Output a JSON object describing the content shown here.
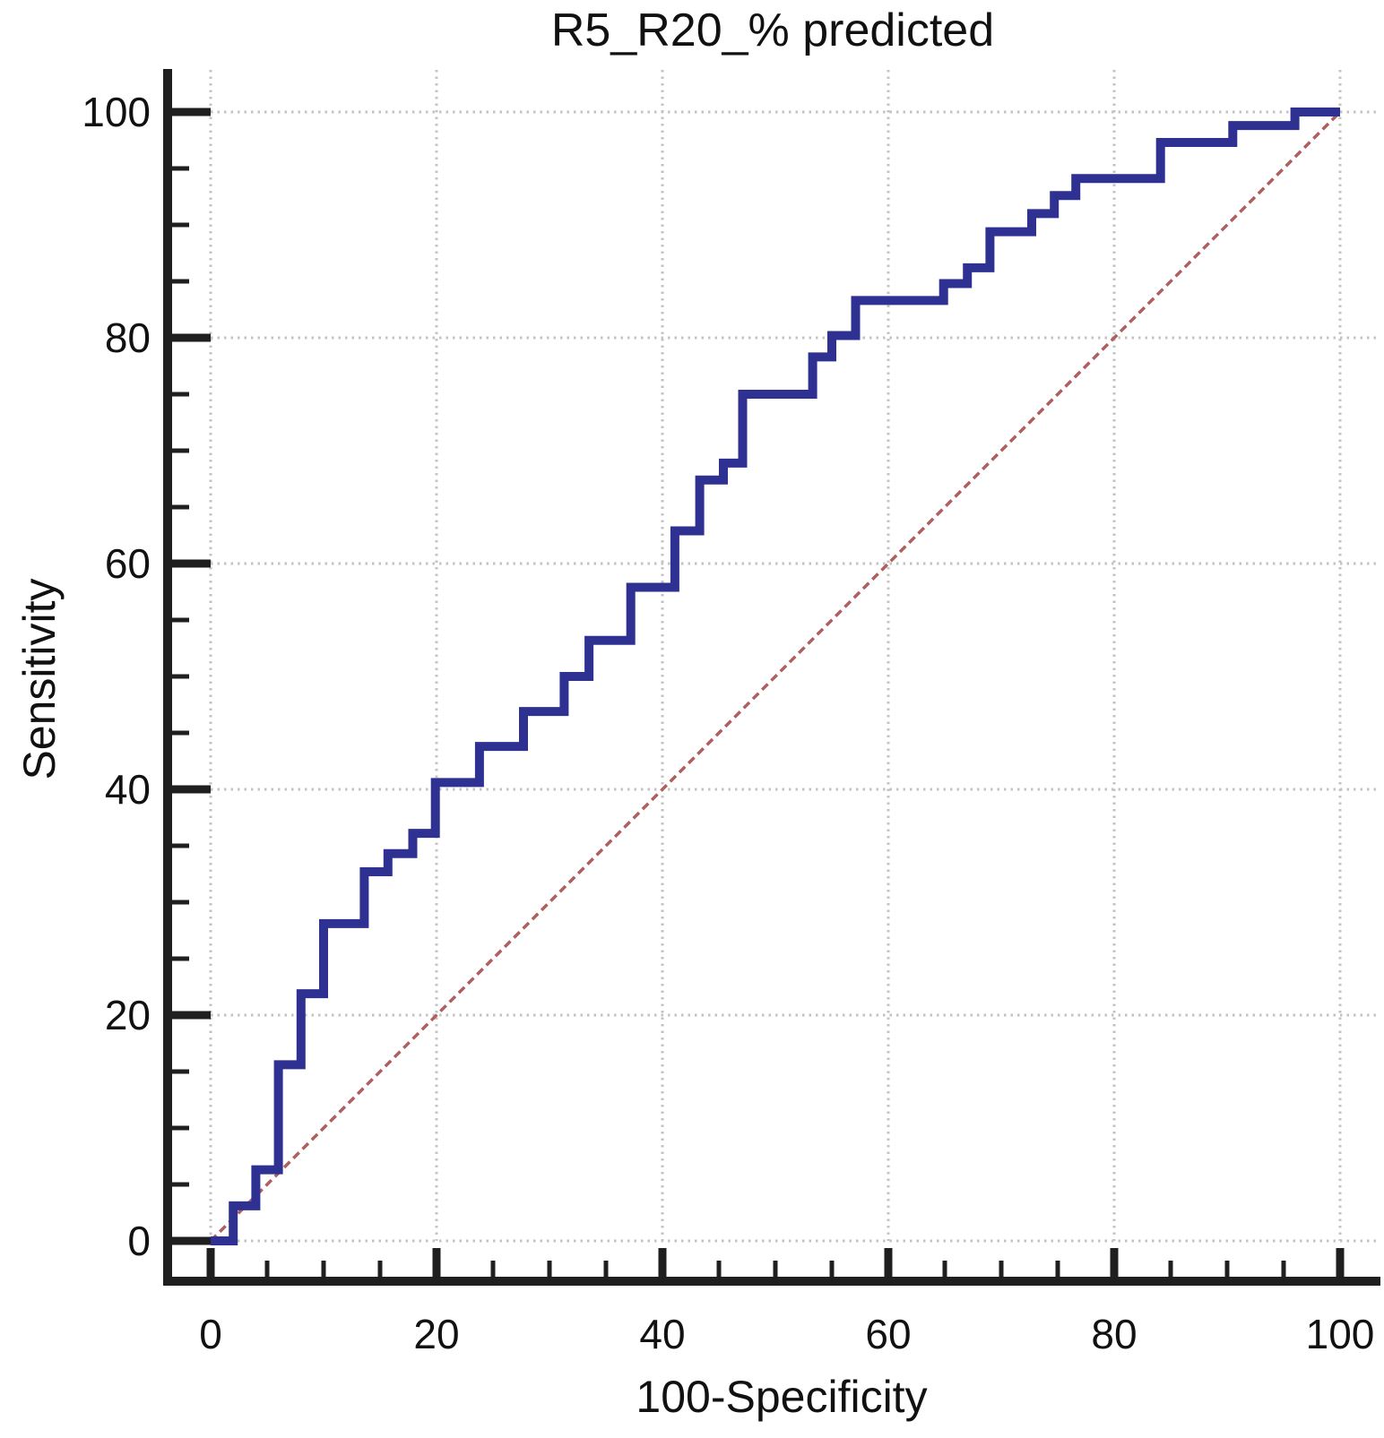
{
  "figure": {
    "title": "R5_R20_% predicted",
    "x_axis_label": "100-Specificity",
    "y_axis_label": "Sensitivity"
  },
  "chart_data": {
    "type": "line",
    "subtype": "roc-step-curve",
    "title": "R5_R20_% predicted",
    "xlabel": "100-Specificity",
    "ylabel": "Sensitivity",
    "xlim": [
      0,
      100
    ],
    "ylim": [
      0,
      100
    ],
    "x_major_ticks": [
      0,
      20,
      40,
      60,
      80,
      100
    ],
    "y_major_ticks": [
      0,
      20,
      40,
      60,
      80,
      100
    ],
    "minor_tick_step": 5,
    "grid": "dotted gray gridlines at major ticks",
    "legend": "none",
    "series": [
      {
        "name": "ROC curve",
        "style": "step-solid",
        "color": "#2e3192",
        "line_width": 10,
        "points": [
          [
            0,
            0
          ],
          [
            2,
            0
          ],
          [
            2,
            3.1
          ],
          [
            4,
            3.1
          ],
          [
            4,
            6.3
          ],
          [
            6,
            6.3
          ],
          [
            6,
            15.6
          ],
          [
            8,
            15.6
          ],
          [
            8,
            21.9
          ],
          [
            10,
            21.9
          ],
          [
            10,
            28.1
          ],
          [
            13.6,
            28.1
          ],
          [
            13.6,
            32.7
          ],
          [
            15.7,
            32.7
          ],
          [
            15.7,
            34.3
          ],
          [
            17.9,
            34.3
          ],
          [
            17.9,
            36.1
          ],
          [
            19.9,
            36.1
          ],
          [
            19.9,
            40.6
          ],
          [
            23.8,
            40.6
          ],
          [
            23.8,
            43.8
          ],
          [
            27.7,
            43.8
          ],
          [
            27.7,
            46.9
          ],
          [
            31.3,
            46.9
          ],
          [
            31.3,
            50
          ],
          [
            33.5,
            50
          ],
          [
            33.5,
            53.2
          ],
          [
            37.2,
            53.2
          ],
          [
            37.2,
            57.9
          ],
          [
            41.1,
            57.9
          ],
          [
            41.1,
            62.9
          ],
          [
            43.3,
            62.9
          ],
          [
            43.3,
            67.4
          ],
          [
            45.4,
            67.4
          ],
          [
            45.4,
            68.9
          ],
          [
            47.1,
            68.9
          ],
          [
            47.1,
            75
          ],
          [
            53.3,
            75
          ],
          [
            53.3,
            78.3
          ],
          [
            55,
            78.3
          ],
          [
            55,
            80.2
          ],
          [
            57.1,
            80.2
          ],
          [
            57.1,
            83.3
          ],
          [
            64.9,
            83.3
          ],
          [
            64.9,
            84.8
          ],
          [
            67,
            84.8
          ],
          [
            67,
            86.2
          ],
          [
            69,
            86.2
          ],
          [
            69,
            89.4
          ],
          [
            72.7,
            89.4
          ],
          [
            72.7,
            91
          ],
          [
            74.7,
            91
          ],
          [
            74.7,
            92.6
          ],
          [
            76.6,
            92.6
          ],
          [
            76.6,
            94.1
          ],
          [
            84.1,
            94.1
          ],
          [
            84.1,
            97.3
          ],
          [
            90.5,
            97.3
          ],
          [
            90.5,
            98.8
          ],
          [
            96,
            98.8
          ],
          [
            96,
            100
          ],
          [
            100,
            100
          ]
        ]
      },
      {
        "name": "reference diagonal",
        "style": "dashed",
        "color": "#b05f5f",
        "line_width": 3.5,
        "points": [
          [
            0,
            0
          ],
          [
            100,
            100
          ]
        ]
      }
    ],
    "colors": {
      "axis": "#1f1f1f",
      "grid": "#c3c3c3",
      "text": "#111111",
      "background": "#ffffff"
    }
  }
}
